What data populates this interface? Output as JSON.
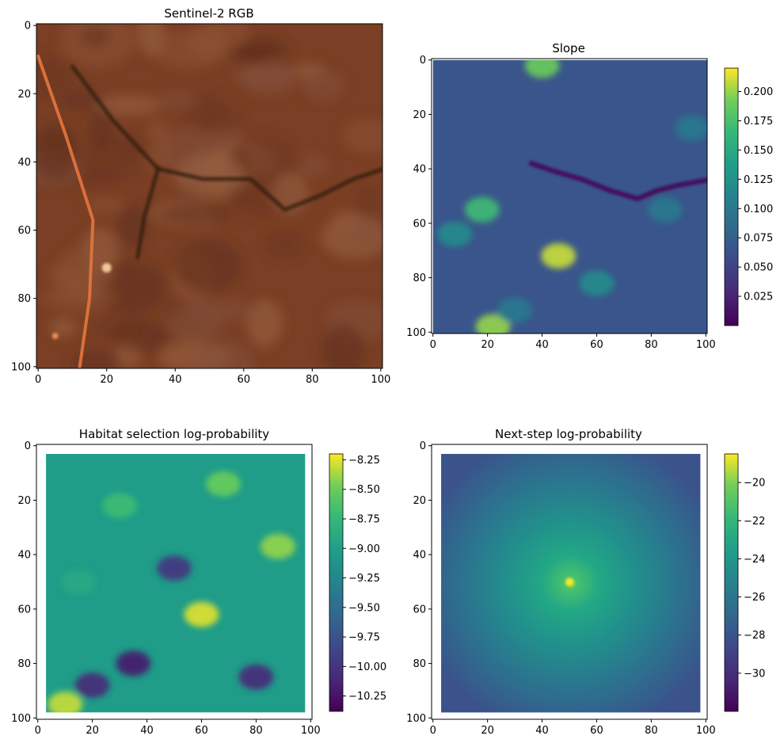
{
  "chart_data": [
    {
      "type": "heatmap",
      "title": "Sentinel-2 RGB",
      "colormap": "rgb",
      "xlim": [
        0,
        101
      ],
      "ylim": [
        101,
        0
      ],
      "xticks": [
        0,
        20,
        40,
        60,
        80,
        100
      ],
      "yticks": [
        0,
        20,
        40,
        60,
        80,
        100
      ],
      "background_color": "#7a3f24",
      "features": [
        {
          "kind": "road",
          "color": "#e0733c",
          "points": [
            [
              0,
              9
            ],
            [
              8,
              32
            ],
            [
              16,
              57
            ],
            [
              15,
              80
            ],
            [
              12,
              101
            ]
          ]
        },
        {
          "kind": "drainage",
          "color": "#2e1c10",
          "points": [
            [
              10,
              12
            ],
            [
              22,
              28
            ],
            [
              35,
              42
            ],
            [
              48,
              45
            ],
            [
              62,
              45
            ],
            [
              72,
              54
            ],
            [
              82,
              50
            ],
            [
              92,
              45
            ],
            [
              101,
              42
            ]
          ]
        },
        {
          "kind": "drainage",
          "color": "#2e1c10",
          "points": [
            [
              35,
              42
            ],
            [
              31,
              56
            ],
            [
              29,
              68
            ]
          ]
        },
        {
          "kind": "bright-spot",
          "color": "#f3c79a",
          "points": [
            [
              20,
              71
            ]
          ]
        },
        {
          "kind": "bright-spot",
          "color": "#e9915a",
          "points": [
            [
              5,
              91
            ]
          ]
        }
      ]
    },
    {
      "type": "heatmap",
      "title": "Slope",
      "colormap": "viridis",
      "xlim": [
        0,
        101
      ],
      "ylim": [
        101,
        0
      ],
      "xticks": [
        0,
        20,
        40,
        60,
        80,
        100
      ],
      "yticks": [
        0,
        20,
        40,
        60,
        80,
        100
      ],
      "colorbar": {
        "min": 0.0,
        "max": 0.22,
        "ticks": [
          0.025,
          0.05,
          0.075,
          0.1,
          0.125,
          0.15,
          0.175,
          0.2
        ],
        "tick_labels": [
          "0.025",
          "0.050",
          "0.075",
          "0.100",
          "0.125",
          "0.150",
          "0.175",
          "0.200"
        ]
      },
      "hotspots": [
        {
          "x": 46,
          "y": 72,
          "value": 0.21
        },
        {
          "x": 22,
          "y": 98,
          "value": 0.2
        },
        {
          "x": 18,
          "y": 55,
          "value": 0.17
        },
        {
          "x": 40,
          "y": 2,
          "value": 0.19
        },
        {
          "x": 60,
          "y": 82,
          "value": 0.12
        },
        {
          "x": 8,
          "y": 64,
          "value": 0.12
        },
        {
          "x": 85,
          "y": 55,
          "value": 0.1
        },
        {
          "x": 95,
          "y": 25,
          "value": 0.1
        },
        {
          "x": 30,
          "y": 92,
          "value": 0.1
        }
      ]
    },
    {
      "type": "heatmap",
      "title": "Habitat selection log-probability",
      "colormap": "viridis",
      "xlim": [
        0,
        101
      ],
      "ylim": [
        101,
        0
      ],
      "xticks": [
        0,
        20,
        40,
        60,
        80,
        100
      ],
      "yticks": [
        0,
        20,
        40,
        60,
        80,
        100
      ],
      "colorbar": {
        "min": -10.38,
        "max": -8.2,
        "ticks": [
          -10.25,
          -10.0,
          -9.75,
          -9.5,
          -9.25,
          -9.0,
          -8.75,
          -8.5,
          -8.25
        ],
        "tick_labels": [
          "−10.25",
          "−10.00",
          "−9.75",
          "−9.50",
          "−9.25",
          "−9.00",
          "−8.75",
          "−8.50",
          "−8.25"
        ]
      },
      "data_extent": [
        3,
        98,
        3,
        98
      ],
      "hotspots": [
        {
          "x": 60,
          "y": 62,
          "value": -8.25
        },
        {
          "x": 88,
          "y": 37,
          "value": -8.4
        },
        {
          "x": 68,
          "y": 14,
          "value": -8.5
        },
        {
          "x": 10,
          "y": 95,
          "value": -8.3
        },
        {
          "x": 30,
          "y": 22,
          "value": -8.7
        },
        {
          "x": 15,
          "y": 50,
          "value": -8.9
        },
        {
          "x": 35,
          "y": 80,
          "value": -10.2
        },
        {
          "x": 80,
          "y": 85,
          "value": -10.1
        },
        {
          "x": 20,
          "y": 88,
          "value": -10.1
        },
        {
          "x": 50,
          "y": 45,
          "value": -10.0
        }
      ]
    },
    {
      "type": "heatmap",
      "title": "Next-step log-probability",
      "colormap": "viridis",
      "xlim": [
        0,
        101
      ],
      "ylim": [
        101,
        0
      ],
      "xticks": [
        0,
        20,
        40,
        60,
        80,
        100
      ],
      "yticks": [
        0,
        20,
        40,
        60,
        80,
        100
      ],
      "colorbar": {
        "min": -32,
        "max": -18.5,
        "ticks": [
          -30,
          -28,
          -26,
          -24,
          -22,
          -20
        ],
        "tick_labels": [
          "−30",
          "−28",
          "−26",
          "−24",
          "−22",
          "−20"
        ]
      },
      "data_extent": [
        3,
        98,
        3,
        98
      ],
      "peak": {
        "x": 50,
        "y": 50,
        "value": -18.5
      },
      "edge_value": -30.5
    }
  ]
}
